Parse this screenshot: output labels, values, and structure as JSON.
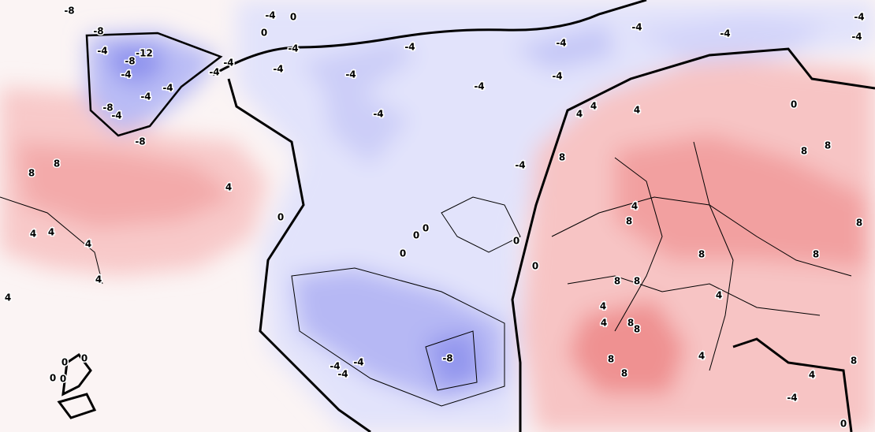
{
  "contour_labels": [
    "-8",
    "-8",
    "-4",
    "-12",
    "-8",
    "-4",
    "-4",
    "-8",
    "-4",
    "-8",
    "-4",
    "-4",
    "-4",
    "0",
    "-4",
    "-4",
    "0",
    "-4",
    "-4",
    "-4",
    "-4",
    "-4",
    "-4",
    "-4",
    "-4",
    "-4",
    "-4",
    "-4",
    "8",
    "8",
    "4",
    "0",
    "4",
    "4",
    "4",
    "4",
    "4",
    "0",
    "0",
    "0",
    "0",
    "0",
    "4",
    "4",
    "4",
    "8",
    "0",
    "8",
    "8",
    "4",
    "8",
    "8",
    "8",
    "8",
    "4",
    "8",
    "8",
    "4",
    "4",
    "8",
    "8",
    "8",
    "8",
    "4",
    "4",
    "-4",
    "8",
    "0",
    "-8",
    "-4",
    "-4",
    "-4",
    "0",
    "0",
    "0",
    "0",
    "-4"
  ]
}
